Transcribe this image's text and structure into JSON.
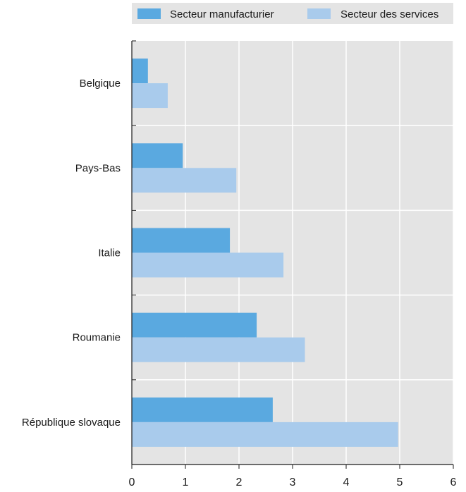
{
  "chart_data": {
    "type": "bar",
    "orientation": "horizontal",
    "categories": [
      "Belgique",
      "Pays-Bas",
      "Italie",
      "Roumanie",
      "République slovaque"
    ],
    "series": [
      {
        "name": "Secteur manufacturier",
        "color": "#5aa9e0",
        "values": [
          0.3,
          0.95,
          1.83,
          2.33,
          2.63
        ]
      },
      {
        "name": "Secteur des services",
        "color": "#a9cbec",
        "values": [
          0.67,
          1.95,
          2.83,
          3.23,
          4.97
        ]
      }
    ],
    "xlim": [
      0,
      6
    ],
    "xticks": [
      "0",
      "1",
      "2",
      "3",
      "4",
      "5",
      "6"
    ],
    "grid": true,
    "legend_position": "top",
    "plot_background": "#e4e4e4"
  }
}
